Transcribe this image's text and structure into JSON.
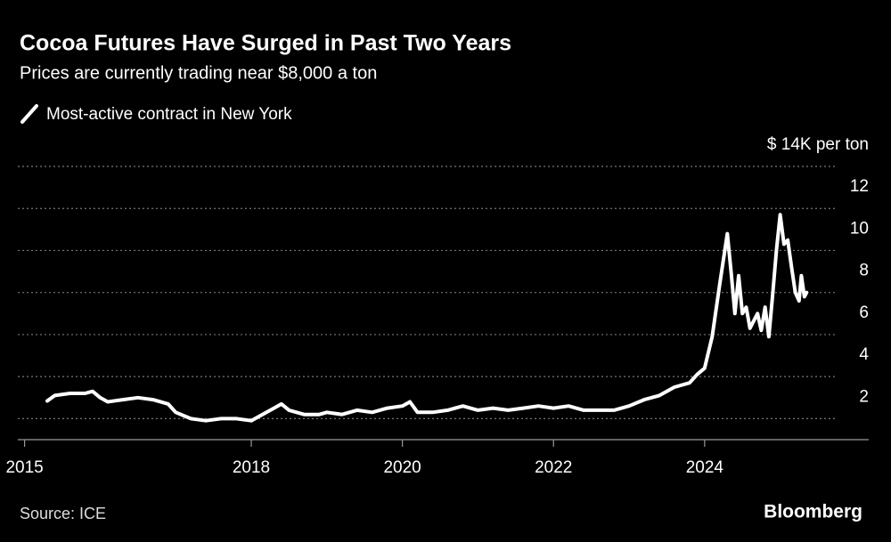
{
  "chart_data": {
    "type": "line",
    "title": "Cocoa Futures Have Surged in Past Two Years",
    "subtitle": "Prices are currently trading near $8,000 a ton",
    "source": "Source: ICE",
    "credit": "Bloomberg",
    "x": [
      2015.3,
      2015.4,
      2015.6,
      2015.8,
      2015.9,
      2016.0,
      2016.1,
      2016.3,
      2016.5,
      2016.7,
      2016.9,
      2017.0,
      2017.2,
      2017.4,
      2017.6,
      2017.8,
      2018.0,
      2018.1,
      2018.3,
      2018.4,
      2018.5,
      2018.7,
      2018.9,
      2019.0,
      2019.2,
      2019.4,
      2019.6,
      2019.8,
      2020.0,
      2020.1,
      2020.2,
      2020.4,
      2020.6,
      2020.8,
      2021.0,
      2021.2,
      2021.4,
      2021.6,
      2021.8,
      2022.0,
      2022.2,
      2022.4,
      2022.6,
      2022.8,
      2023.0,
      2023.2,
      2023.4,
      2023.6,
      2023.8,
      2023.9,
      2024.0,
      2024.1,
      2024.2,
      2024.3,
      2024.35,
      2024.4,
      2024.45,
      2024.5,
      2024.55,
      2024.6,
      2024.7,
      2024.75,
      2024.8,
      2024.85,
      2024.9,
      2024.95,
      2025.0,
      2025.05,
      2025.1,
      2025.15,
      2025.2,
      2025.25,
      2025.28,
      2025.32,
      2025.35
    ],
    "series": [
      {
        "name": "Most-active contract in New York",
        "color": "#ffffff",
        "values": [
          2.84,
          3.1,
          3.2,
          3.2,
          3.3,
          3.0,
          2.8,
          2.9,
          3.0,
          2.9,
          2.7,
          2.3,
          2.0,
          1.9,
          2.0,
          2.0,
          1.9,
          2.1,
          2.5,
          2.7,
          2.4,
          2.2,
          2.2,
          2.3,
          2.2,
          2.4,
          2.3,
          2.5,
          2.6,
          2.8,
          2.3,
          2.3,
          2.4,
          2.6,
          2.4,
          2.5,
          2.4,
          2.5,
          2.6,
          2.5,
          2.6,
          2.4,
          2.4,
          2.4,
          2.6,
          2.9,
          3.1,
          3.5,
          3.7,
          4.1,
          4.4,
          5.9,
          8.4,
          10.8,
          9.0,
          7.0,
          8.8,
          7.0,
          7.3,
          6.3,
          7.0,
          6.2,
          7.3,
          5.9,
          7.9,
          10.0,
          11.7,
          10.3,
          10.5,
          9.2,
          8.0,
          7.6,
          8.8,
          7.8,
          8.0
        ]
      }
    ],
    "xlim": [
      2015,
      2026.2
    ],
    "xticks": [
      2015,
      2018,
      2020,
      2022,
      2024
    ],
    "ylim": [
      1,
      14
    ],
    "yticks": [
      2,
      4,
      6,
      8,
      10,
      12,
      {
        "value": 14,
        "label": "$ 14K per ton"
      }
    ],
    "grid": true
  }
}
